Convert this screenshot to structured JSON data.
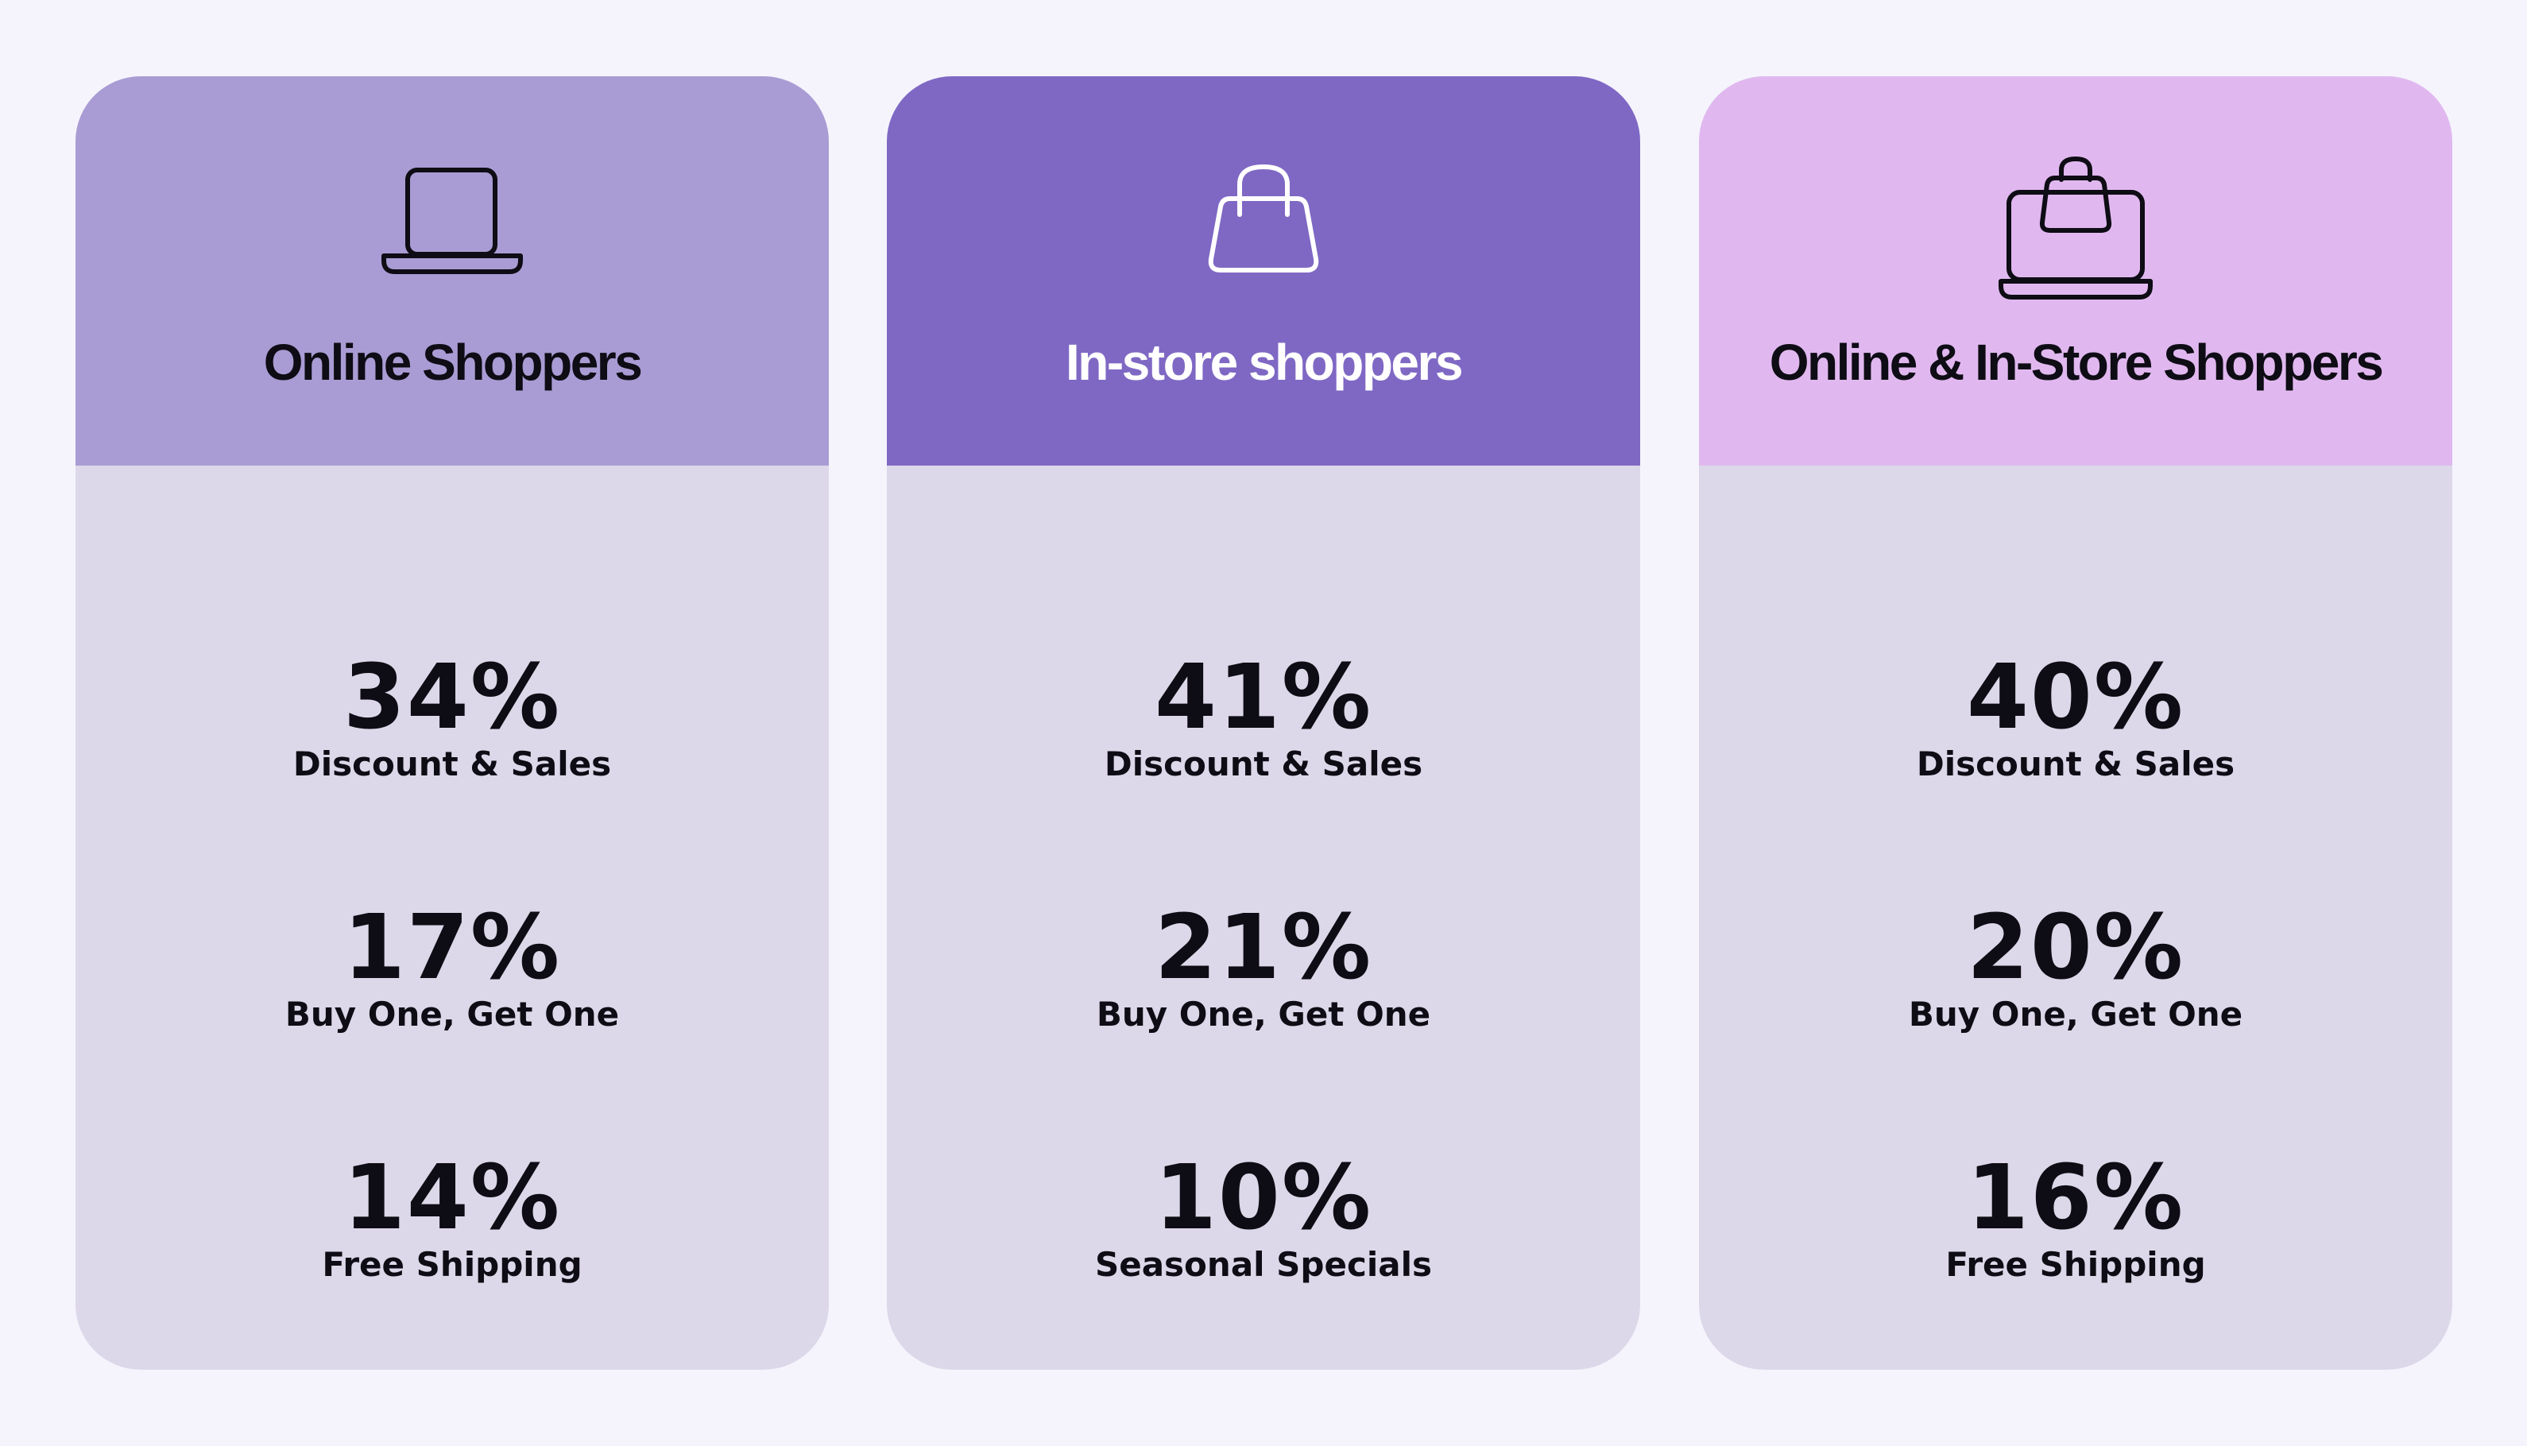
{
  "cards": [
    {
      "title": "Online Shoppers",
      "icon": "laptop-icon",
      "header_color": "#a99cd4",
      "title_color": "#0e0c14",
      "stats": [
        {
          "value": "34%",
          "label": "Discount & Sales"
        },
        {
          "value": "17%",
          "label": "Buy One, Get One"
        },
        {
          "value": "14%",
          "label": "Free Shipping"
        }
      ]
    },
    {
      "title": "In-store shoppers",
      "icon": "shopping-bag-icon",
      "header_color": "#7f68c4",
      "title_color": "#ffffff",
      "stats": [
        {
          "value": "41%",
          "label": "Discount & Sales"
        },
        {
          "value": "21%",
          "label": "Buy One, Get One"
        },
        {
          "value": "10%",
          "label": "Seasonal Specials"
        }
      ]
    },
    {
      "title": "Online & In-Store Shoppers",
      "icon": "laptop-with-bag-icon",
      "header_color": "#e0b8ef",
      "title_color": "#0e0c14",
      "stats": [
        {
          "value": "40%",
          "label": "Discount & Sales"
        },
        {
          "value": "20%",
          "label": "Buy One, Get One"
        },
        {
          "value": "16%",
          "label": "Free Shipping"
        }
      ]
    }
  ],
  "colors": {
    "page_background": "#f5f4fd",
    "card_body": "#dcd8e9"
  }
}
